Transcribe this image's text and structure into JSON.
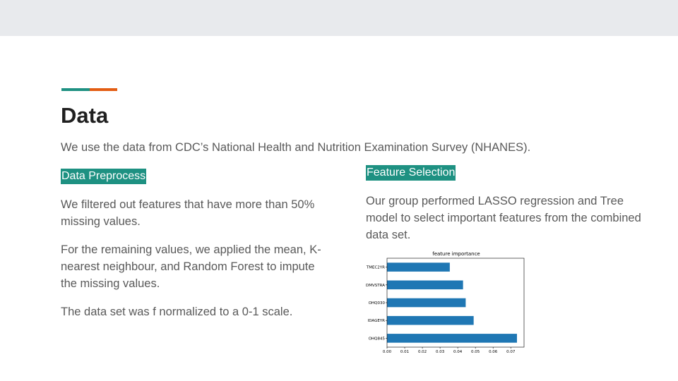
{
  "slide": {
    "title": "Data",
    "subtitle": "We use the data from CDC’s National Health and Nutrition Examination Survey (NHANES).",
    "left": {
      "heading": "Data Preprocess",
      "p1": "We  filtered out features that have more than 50% missing values.",
      "p2": "For the remaining values, we  applied the mean, K-nearest neighbour, and Random Forest to impute the missing values.",
      "p3": "The data set was f normalized to a 0-1 scale."
    },
    "right": {
      "heading": "Feature Selection",
      "p1": "Our group performed LASSO regression and Tree model to select important features from the combined data set."
    },
    "colors": {
      "accent_teal": "#1e9182",
      "accent_orange": "#e35d13",
      "bar": "#1f77b4"
    }
  },
  "chart_data": {
    "type": "bar",
    "orientation": "horizontal",
    "title": "feature importance",
    "categories": [
      "OHQ845",
      "IDAGEYR",
      "OHQ030",
      "DMVSTRA",
      "TMEC2YR"
    ],
    "values": [
      0.0735,
      0.049,
      0.0445,
      0.043,
      0.0355
    ],
    "xlim": [
      0,
      0.0775
    ],
    "xticks": [
      "0.00",
      "0.01",
      "0.02",
      "0.03",
      "0.04",
      "0.05",
      "0.06",
      "0.07"
    ],
    "xtick_values": [
      0,
      0.01,
      0.02,
      0.03,
      0.04,
      0.05,
      0.06,
      0.07
    ],
    "grid": false
  }
}
